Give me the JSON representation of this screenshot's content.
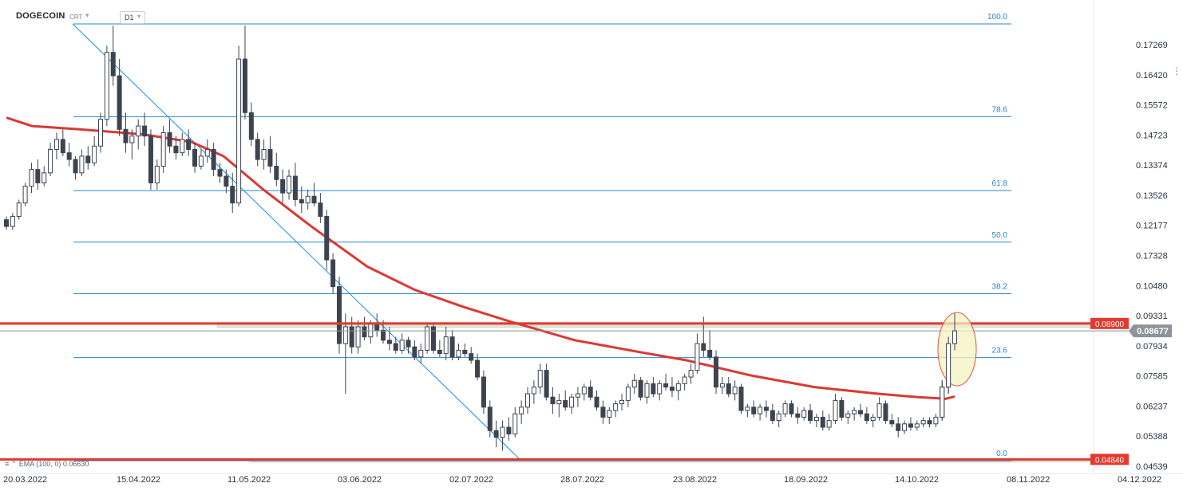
{
  "header": {
    "symbol": "DOGECOIN",
    "instrument_type": "CRT",
    "timeframe": "D1"
  },
  "legend": {
    "ema_label": "EMA (100, 0) 0.06630"
  },
  "colors": {
    "up_candle": "#ffffff",
    "down_candle": "#3d4450",
    "ema": "#d93a34",
    "fib_line": "#2a86c8",
    "trend_line": "#2a9be0",
    "price_badge": "#8e9499",
    "level_badge": "#e53930",
    "highlight_fill": "#f6f2c2",
    "highlight_stroke": "#e05245"
  },
  "chart_data": {
    "type": "candlestick",
    "y_axis_labels": [
      "0.17269",
      "0.16420",
      "0.15572",
      "0.14723",
      "0.13374",
      "0.13526",
      "0.12177",
      "0.17328",
      "0.10480",
      "0.09331",
      "0.07934",
      "0.07585",
      "0.06237",
      "0.05388",
      "0.04539"
    ],
    "x_axis_labels": [
      "20.03.2022",
      "15.04.2022",
      "11.05.2022",
      "03.06.2022",
      "02.07.2022",
      "28.07.2022",
      "23.08.2022",
      "18.09.2022",
      "14.10.2022",
      "08.11.2022",
      "04.12.2022"
    ],
    "fib_levels": [
      {
        "label": "100.0",
        "value": 0.1785
      },
      {
        "label": "78.6",
        "value": 0.1508
      },
      {
        "label": "61.8",
        "value": 0.1287
      },
      {
        "label": "50.0",
        "value": 0.1133
      },
      {
        "label": "38.2",
        "value": 0.0979
      },
      {
        "label": "23.6",
        "value": 0.0788
      },
      {
        "label": "0.0",
        "value": 0.048
      }
    ],
    "horizontal_levels": [
      {
        "label": "0.08900",
        "value": 0.089
      },
      {
        "label": "0.04840",
        "value": 0.0484
      }
    ],
    "current_price": {
      "label": "0.08677",
      "value": 0.0868
    },
    "ema": {
      "label": "EMA (100, 0) 0.06630",
      "value": 0.0663
    },
    "candles": [
      [
        0.12,
        0.121,
        0.117,
        0.118
      ],
      [
        0.118,
        0.122,
        0.117,
        0.121
      ],
      [
        0.121,
        0.126,
        0.12,
        0.125
      ],
      [
        0.125,
        0.131,
        0.124,
        0.13
      ],
      [
        0.13,
        0.137,
        0.128,
        0.135
      ],
      [
        0.135,
        0.138,
        0.129,
        0.131
      ],
      [
        0.131,
        0.136,
        0.13,
        0.134
      ],
      [
        0.134,
        0.143,
        0.133,
        0.141
      ],
      [
        0.141,
        0.146,
        0.138,
        0.144
      ],
      [
        0.144,
        0.147,
        0.139,
        0.14
      ],
      [
        0.14,
        0.143,
        0.136,
        0.138
      ],
      [
        0.138,
        0.139,
        0.132,
        0.134
      ],
      [
        0.134,
        0.141,
        0.133,
        0.139
      ],
      [
        0.139,
        0.142,
        0.135,
        0.137
      ],
      [
        0.137,
        0.145,
        0.136,
        0.142
      ],
      [
        0.142,
        0.152,
        0.14,
        0.15
      ],
      [
        0.15,
        0.172,
        0.148,
        0.17
      ],
      [
        0.17,
        0.178,
        0.16,
        0.163
      ],
      [
        0.163,
        0.168,
        0.145,
        0.147
      ],
      [
        0.147,
        0.152,
        0.14,
        0.143
      ],
      [
        0.143,
        0.147,
        0.138,
        0.145
      ],
      [
        0.145,
        0.15,
        0.141,
        0.148
      ],
      [
        0.148,
        0.152,
        0.142,
        0.145
      ],
      [
        0.145,
        0.147,
        0.129,
        0.131
      ],
      [
        0.131,
        0.138,
        0.129,
        0.136
      ],
      [
        0.136,
        0.148,
        0.134,
        0.146
      ],
      [
        0.146,
        0.15,
        0.14,
        0.142
      ],
      [
        0.142,
        0.145,
        0.138,
        0.14
      ],
      [
        0.14,
        0.146,
        0.139,
        0.144
      ],
      [
        0.144,
        0.147,
        0.139,
        0.141
      ],
      [
        0.141,
        0.143,
        0.134,
        0.136
      ],
      [
        0.136,
        0.141,
        0.135,
        0.139
      ],
      [
        0.139,
        0.144,
        0.137,
        0.141
      ],
      [
        0.141,
        0.143,
        0.133,
        0.135
      ],
      [
        0.135,
        0.137,
        0.131,
        0.133
      ],
      [
        0.133,
        0.135,
        0.128,
        0.13
      ],
      [
        0.13,
        0.134,
        0.122,
        0.125
      ],
      [
        0.125,
        0.172,
        0.124,
        0.168
      ],
      [
        0.168,
        0.178,
        0.15,
        0.152
      ],
      [
        0.152,
        0.155,
        0.142,
        0.144
      ],
      [
        0.144,
        0.146,
        0.136,
        0.138
      ],
      [
        0.138,
        0.144,
        0.135,
        0.141
      ],
      [
        0.141,
        0.145,
        0.134,
        0.136
      ],
      [
        0.136,
        0.14,
        0.13,
        0.132
      ],
      [
        0.132,
        0.135,
        0.125,
        0.128
      ],
      [
        0.128,
        0.135,
        0.126,
        0.133
      ],
      [
        0.133,
        0.137,
        0.124,
        0.126
      ],
      [
        0.126,
        0.13,
        0.122,
        0.125
      ],
      [
        0.125,
        0.129,
        0.123,
        0.127
      ],
      [
        0.127,
        0.131,
        0.124,
        0.125
      ],
      [
        0.125,
        0.128,
        0.119,
        0.121
      ],
      [
        0.121,
        0.123,
        0.105,
        0.108
      ],
      [
        0.108,
        0.11,
        0.098,
        0.1
      ],
      [
        0.1,
        0.103,
        0.08,
        0.083
      ],
      [
        0.083,
        0.092,
        0.068,
        0.088
      ],
      [
        0.088,
        0.091,
        0.08,
        0.082
      ],
      [
        0.082,
        0.09,
        0.08,
        0.088
      ],
      [
        0.088,
        0.091,
        0.084,
        0.085
      ],
      [
        0.085,
        0.09,
        0.083,
        0.089
      ],
      [
        0.089,
        0.092,
        0.085,
        0.087
      ],
      [
        0.087,
        0.09,
        0.083,
        0.084
      ],
      [
        0.084,
        0.088,
        0.081,
        0.083
      ],
      [
        0.083,
        0.085,
        0.08,
        0.081
      ],
      [
        0.081,
        0.086,
        0.08,
        0.084
      ],
      [
        0.084,
        0.085,
        0.08,
        0.082
      ],
      [
        0.082,
        0.084,
        0.078,
        0.079
      ],
      [
        0.079,
        0.083,
        0.077,
        0.081
      ],
      [
        0.081,
        0.089,
        0.08,
        0.088
      ],
      [
        0.088,
        0.089,
        0.08,
        0.081
      ],
      [
        0.081,
        0.084,
        0.079,
        0.08
      ],
      [
        0.08,
        0.088,
        0.078,
        0.085
      ],
      [
        0.085,
        0.087,
        0.078,
        0.079
      ],
      [
        0.079,
        0.083,
        0.078,
        0.081
      ],
      [
        0.081,
        0.083,
        0.079,
        0.08
      ],
      [
        0.08,
        0.082,
        0.077,
        0.078
      ],
      [
        0.078,
        0.08,
        0.072,
        0.073
      ],
      [
        0.073,
        0.075,
        0.062,
        0.064
      ],
      [
        0.064,
        0.066,
        0.055,
        0.057
      ],
      [
        0.057,
        0.06,
        0.052,
        0.055
      ],
      [
        0.055,
        0.06,
        0.051,
        0.058
      ],
      [
        0.058,
        0.061,
        0.054,
        0.056
      ],
      [
        0.056,
        0.064,
        0.055,
        0.062
      ],
      [
        0.062,
        0.066,
        0.059,
        0.064
      ],
      [
        0.064,
        0.07,
        0.062,
        0.068
      ],
      [
        0.068,
        0.072,
        0.065,
        0.07
      ],
      [
        0.07,
        0.077,
        0.068,
        0.075
      ],
      [
        0.075,
        0.077,
        0.066,
        0.067
      ],
      [
        0.067,
        0.07,
        0.062,
        0.065
      ],
      [
        0.065,
        0.068,
        0.061,
        0.066
      ],
      [
        0.066,
        0.069,
        0.063,
        0.064
      ],
      [
        0.064,
        0.068,
        0.062,
        0.067
      ],
      [
        0.067,
        0.07,
        0.064,
        0.068
      ],
      [
        0.068,
        0.071,
        0.066,
        0.07
      ],
      [
        0.07,
        0.072,
        0.066,
        0.067
      ],
      [
        0.067,
        0.069,
        0.063,
        0.064
      ],
      [
        0.064,
        0.066,
        0.059,
        0.061
      ],
      [
        0.061,
        0.064,
        0.059,
        0.063
      ],
      [
        0.063,
        0.066,
        0.061,
        0.065
      ],
      [
        0.065,
        0.068,
        0.063,
        0.066
      ],
      [
        0.066,
        0.071,
        0.064,
        0.07
      ],
      [
        0.07,
        0.074,
        0.068,
        0.072
      ],
      [
        0.072,
        0.073,
        0.066,
        0.067
      ],
      [
        0.067,
        0.072,
        0.065,
        0.071
      ],
      [
        0.071,
        0.073,
        0.067,
        0.068
      ],
      [
        0.068,
        0.072,
        0.066,
        0.071
      ],
      [
        0.071,
        0.074,
        0.069,
        0.07
      ],
      [
        0.07,
        0.073,
        0.067,
        0.069
      ],
      [
        0.069,
        0.072,
        0.066,
        0.071
      ],
      [
        0.071,
        0.074,
        0.069,
        0.073
      ],
      [
        0.073,
        0.077,
        0.071,
        0.075
      ],
      [
        0.075,
        0.086,
        0.074,
        0.083
      ],
      [
        0.083,
        0.091,
        0.079,
        0.081
      ],
      [
        0.081,
        0.087,
        0.078,
        0.079
      ],
      [
        0.079,
        0.081,
        0.068,
        0.07
      ],
      [
        0.07,
        0.073,
        0.068,
        0.071
      ],
      [
        0.071,
        0.073,
        0.067,
        0.068
      ],
      [
        0.068,
        0.072,
        0.066,
        0.07
      ],
      [
        0.07,
        0.071,
        0.062,
        0.063
      ],
      [
        0.063,
        0.065,
        0.061,
        0.064
      ],
      [
        0.064,
        0.066,
        0.061,
        0.062
      ],
      [
        0.062,
        0.065,
        0.06,
        0.064
      ],
      [
        0.064,
        0.066,
        0.061,
        0.063
      ],
      [
        0.063,
        0.065,
        0.059,
        0.06
      ],
      [
        0.06,
        0.063,
        0.058,
        0.062
      ],
      [
        0.062,
        0.066,
        0.061,
        0.065
      ],
      [
        0.065,
        0.066,
        0.061,
        0.062
      ],
      [
        0.062,
        0.064,
        0.059,
        0.061
      ],
      [
        0.061,
        0.064,
        0.06,
        0.063
      ],
      [
        0.063,
        0.065,
        0.059,
        0.06
      ],
      [
        0.06,
        0.062,
        0.058,
        0.061
      ],
      [
        0.061,
        0.063,
        0.057,
        0.058
      ],
      [
        0.058,
        0.062,
        0.057,
        0.06
      ],
      [
        0.06,
        0.068,
        0.059,
        0.066
      ],
      [
        0.066,
        0.067,
        0.06,
        0.061
      ],
      [
        0.061,
        0.063,
        0.059,
        0.062
      ],
      [
        0.062,
        0.064,
        0.06,
        0.063
      ],
      [
        0.063,
        0.065,
        0.061,
        0.062
      ],
      [
        0.062,
        0.064,
        0.059,
        0.06
      ],
      [
        0.06,
        0.062,
        0.058,
        0.061
      ],
      [
        0.061,
        0.067,
        0.06,
        0.065
      ],
      [
        0.065,
        0.066,
        0.059,
        0.06
      ],
      [
        0.06,
        0.062,
        0.058,
        0.059
      ],
      [
        0.059,
        0.061,
        0.055,
        0.057
      ],
      [
        0.057,
        0.06,
        0.056,
        0.059
      ],
      [
        0.059,
        0.061,
        0.057,
        0.058
      ],
      [
        0.058,
        0.06,
        0.057,
        0.059
      ],
      [
        0.059,
        0.061,
        0.058,
        0.06
      ],
      [
        0.06,
        0.061,
        0.058,
        0.059
      ],
      [
        0.059,
        0.062,
        0.058,
        0.061
      ],
      [
        0.061,
        0.072,
        0.06,
        0.07
      ],
      [
        0.07,
        0.085,
        0.068,
        0.083
      ],
      [
        0.083,
        0.092,
        0.081,
        0.0868
      ]
    ]
  }
}
